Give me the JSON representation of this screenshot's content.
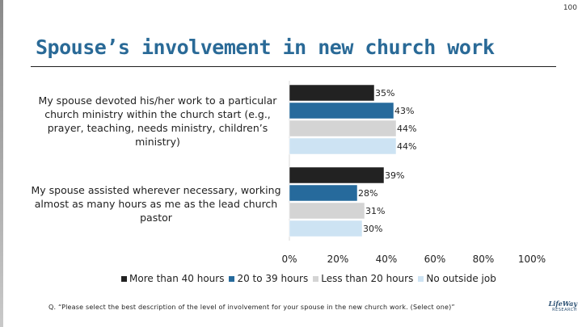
{
  "page_number": "100",
  "title": "Spouse’s involvement in new church work",
  "footnote": "Q. “Please select the best description of the level of involvement for your spouse in the new church work. (Select one)”",
  "logo": {
    "line1": "LifeWay",
    "line2": "RESEARCH"
  },
  "chart_data": {
    "type": "bar",
    "orientation": "horizontal",
    "categories": [
      "My spouse devoted his/her work to a particular church ministry within the church start (e.g., prayer, teaching, needs ministry, children’s ministry)",
      "My spouse assisted wherever necessary, working almost as many hours as me as the lead church pastor"
    ],
    "series": [
      {
        "name": "More than 40 hours",
        "color": "#222222",
        "values": [
          35,
          39
        ]
      },
      {
        "name": "20 to 39 hours",
        "color": "#266a9c",
        "values": [
          43,
          28
        ]
      },
      {
        "name": "Less than 20 hours",
        "color": "#d4d4d4",
        "values": [
          44,
          31
        ]
      },
      {
        "name": "No outside job",
        "color": "#cde3f3",
        "values": [
          44,
          30
        ]
      }
    ],
    "value_suffix": "%",
    "xlim": [
      0,
      100
    ],
    "xticks": [
      "0%",
      "20%",
      "40%",
      "60%",
      "80%",
      "100%"
    ],
    "grid": false,
    "legend_position": "bottom"
  }
}
